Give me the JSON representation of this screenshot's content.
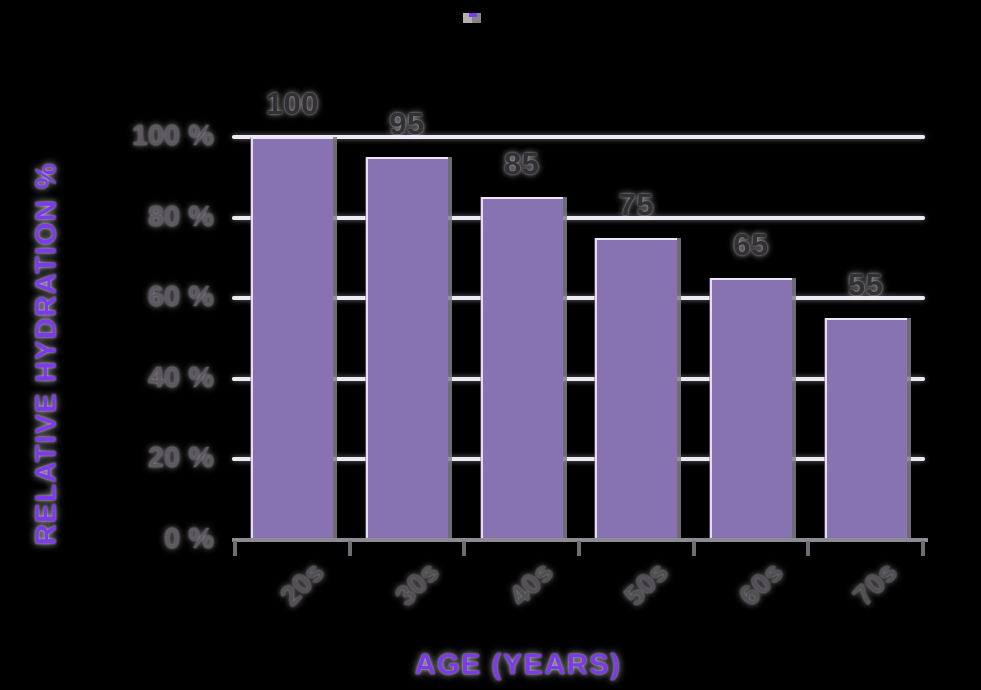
{
  "chart_data": {
    "type": "bar",
    "title": "",
    "categories": [
      "20s",
      "30s",
      "40s",
      "50s",
      "60s",
      "70s"
    ],
    "values": [
      100,
      95,
      85,
      75,
      65,
      55
    ],
    "bar_value_labels": [
      "100",
      "95",
      "85",
      "75",
      "65",
      "55"
    ],
    "xlabel": "AGE (YEARS)",
    "ylabel": "RELATIVE HYDRATION %",
    "y_tick_values": [
      0,
      20,
      40,
      60,
      80,
      100
    ],
    "y_tick_labels": [
      "0 %",
      "20 %",
      "40 %",
      "60 %",
      "80 %",
      "100 %"
    ],
    "ylim": [
      0,
      100
    ],
    "grid": true,
    "legend_position": "none",
    "colors": {
      "background": "#000000",
      "bar": "#8873B2",
      "bar_edge_highlight": "#E9D9F5",
      "bar_shadow": "#827E87",
      "gridline": "#EDE8F3",
      "axis_line": "#8E8A92",
      "axis_tick": "#716D75",
      "y_tick_label": "#5E5862",
      "x_tick_label": "#544F57",
      "value_label": "#332F36",
      "axis_title": "#7C3AEA"
    }
  }
}
